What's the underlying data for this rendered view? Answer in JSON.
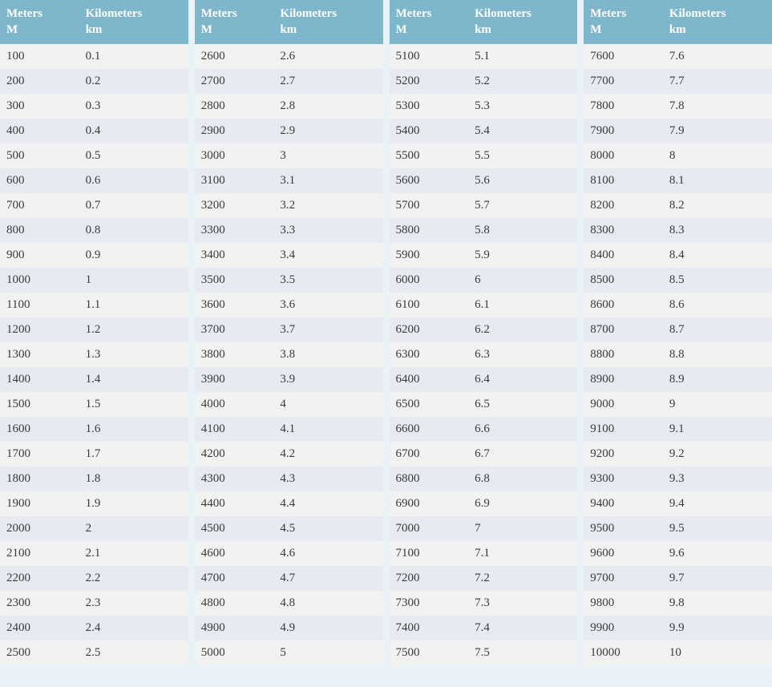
{
  "type": "table",
  "background_color": "#e8f2f7",
  "header_bg_color": "#7eb6cc",
  "header_text_color": "#ffffff",
  "row_odd_color": "#f2f2f2",
  "row_even_color": "#e7ebf1",
  "text_color": "#3a3a3a",
  "font_family": "Georgia, serif",
  "font_size": 15,
  "column_gap": 8,
  "headers": {
    "meters_line1": "Meters",
    "meters_line2": "M",
    "km_line1": "Kilometers",
    "km_line2": "km"
  },
  "columns": [
    {
      "rows": [
        {
          "m": "100",
          "km": "0.1"
        },
        {
          "m": "200",
          "km": "0.2"
        },
        {
          "m": "300",
          "km": "0.3"
        },
        {
          "m": "400",
          "km": "0.4"
        },
        {
          "m": "500",
          "km": "0.5"
        },
        {
          "m": "600",
          "km": "0.6"
        },
        {
          "m": "700",
          "km": "0.7"
        },
        {
          "m": "800",
          "km": "0.8"
        },
        {
          "m": "900",
          "km": "0.9"
        },
        {
          "m": "1000",
          "km": "1"
        },
        {
          "m": "1100",
          "km": "1.1"
        },
        {
          "m": "1200",
          "km": "1.2"
        },
        {
          "m": "1300",
          "km": "1.3"
        },
        {
          "m": "1400",
          "km": "1.4"
        },
        {
          "m": "1500",
          "km": "1.5"
        },
        {
          "m": "1600",
          "km": "1.6"
        },
        {
          "m": "1700",
          "km": "1.7"
        },
        {
          "m": "1800",
          "km": "1.8"
        },
        {
          "m": "1900",
          "km": "1.9"
        },
        {
          "m": "2000",
          "km": "2"
        },
        {
          "m": "2100",
          "km": "2.1"
        },
        {
          "m": "2200",
          "km": "2.2"
        },
        {
          "m": "2300",
          "km": "2.3"
        },
        {
          "m": "2400",
          "km": "2.4"
        },
        {
          "m": "2500",
          "km": "2.5"
        }
      ]
    },
    {
      "rows": [
        {
          "m": "2600",
          "km": "2.6"
        },
        {
          "m": "2700",
          "km": "2.7"
        },
        {
          "m": "2800",
          "km": "2.8"
        },
        {
          "m": "2900",
          "km": "2.9"
        },
        {
          "m": "3000",
          "km": "3"
        },
        {
          "m": "3100",
          "km": "3.1"
        },
        {
          "m": "3200",
          "km": "3.2"
        },
        {
          "m": "3300",
          "km": "3.3"
        },
        {
          "m": "3400",
          "km": "3.4"
        },
        {
          "m": "3500",
          "km": "3.5"
        },
        {
          "m": "3600",
          "km": "3.6"
        },
        {
          "m": "3700",
          "km": "3.7"
        },
        {
          "m": "3800",
          "km": "3.8"
        },
        {
          "m": "3900",
          "km": "3.9"
        },
        {
          "m": "4000",
          "km": "4"
        },
        {
          "m": "4100",
          "km": "4.1"
        },
        {
          "m": "4200",
          "km": "4.2"
        },
        {
          "m": "4300",
          "km": "4.3"
        },
        {
          "m": "4400",
          "km": "4.4"
        },
        {
          "m": "4500",
          "km": "4.5"
        },
        {
          "m": "4600",
          "km": "4.6"
        },
        {
          "m": "4700",
          "km": "4.7"
        },
        {
          "m": "4800",
          "km": "4.8"
        },
        {
          "m": "4900",
          "km": "4.9"
        },
        {
          "m": "5000",
          "km": "5"
        }
      ]
    },
    {
      "rows": [
        {
          "m": "5100",
          "km": "5.1"
        },
        {
          "m": "5200",
          "km": "5.2"
        },
        {
          "m": "5300",
          "km": "5.3"
        },
        {
          "m": "5400",
          "km": "5.4"
        },
        {
          "m": "5500",
          "km": "5.5"
        },
        {
          "m": "5600",
          "km": "5.6"
        },
        {
          "m": "5700",
          "km": "5.7"
        },
        {
          "m": "5800",
          "km": "5.8"
        },
        {
          "m": "5900",
          "km": "5.9"
        },
        {
          "m": "6000",
          "km": "6"
        },
        {
          "m": "6100",
          "km": "6.1"
        },
        {
          "m": "6200",
          "km": "6.2"
        },
        {
          "m": "6300",
          "km": "6.3"
        },
        {
          "m": "6400",
          "km": "6.4"
        },
        {
          "m": "6500",
          "km": "6.5"
        },
        {
          "m": "6600",
          "km": "6.6"
        },
        {
          "m": "6700",
          "km": "6.7"
        },
        {
          "m": "6800",
          "km": "6.8"
        },
        {
          "m": "6900",
          "km": "6.9"
        },
        {
          "m": "7000",
          "km": "7"
        },
        {
          "m": "7100",
          "km": "7.1"
        },
        {
          "m": "7200",
          "km": "7.2"
        },
        {
          "m": "7300",
          "km": "7.3"
        },
        {
          "m": "7400",
          "km": "7.4"
        },
        {
          "m": "7500",
          "km": "7.5"
        }
      ]
    },
    {
      "rows": [
        {
          "m": "7600",
          "km": "7.6"
        },
        {
          "m": "7700",
          "km": "7.7"
        },
        {
          "m": "7800",
          "km": "7.8"
        },
        {
          "m": "7900",
          "km": "7.9"
        },
        {
          "m": "8000",
          "km": "8"
        },
        {
          "m": "8100",
          "km": "8.1"
        },
        {
          "m": "8200",
          "km": "8.2"
        },
        {
          "m": "8300",
          "km": "8.3"
        },
        {
          "m": "8400",
          "km": "8.4"
        },
        {
          "m": "8500",
          "km": "8.5"
        },
        {
          "m": "8600",
          "km": "8.6"
        },
        {
          "m": "8700",
          "km": "8.7"
        },
        {
          "m": "8800",
          "km": "8.8"
        },
        {
          "m": "8900",
          "km": "8.9"
        },
        {
          "m": "9000",
          "km": "9"
        },
        {
          "m": "9100",
          "km": "9.1"
        },
        {
          "m": "9200",
          "km": "9.2"
        },
        {
          "m": "9300",
          "km": "9.3"
        },
        {
          "m": "9400",
          "km": "9.4"
        },
        {
          "m": "9500",
          "km": "9.5"
        },
        {
          "m": "9600",
          "km": "9.6"
        },
        {
          "m": "9700",
          "km": "9.7"
        },
        {
          "m": "9800",
          "km": "9.8"
        },
        {
          "m": "9900",
          "km": "9.9"
        },
        {
          "m": "10000",
          "km": "10"
        }
      ]
    }
  ]
}
